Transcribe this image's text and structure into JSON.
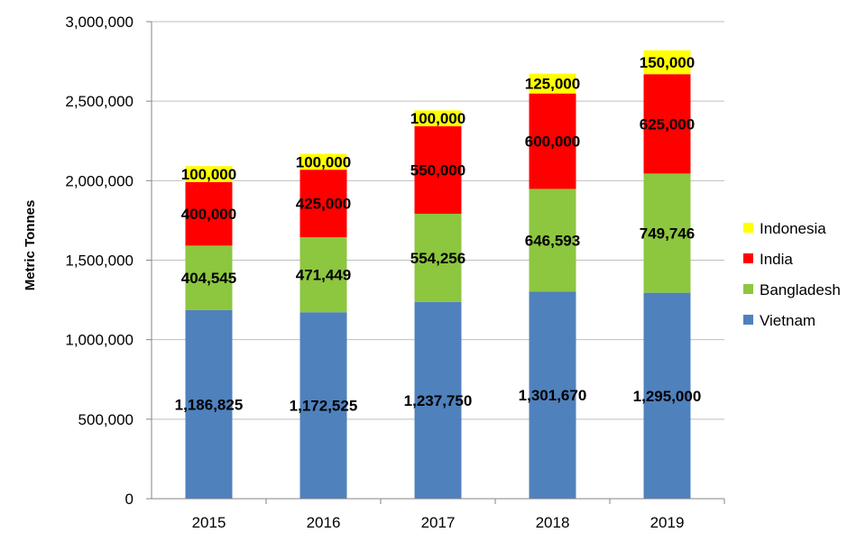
{
  "chart_data": {
    "type": "bar",
    "stacked": true,
    "title": "",
    "xlabel": "",
    "ylabel": "Metric Tonnes",
    "ylim": [
      0,
      3000000
    ],
    "yticks": [
      0,
      500000,
      1000000,
      1500000,
      2000000,
      2500000,
      3000000
    ],
    "ytick_labels": [
      "0",
      "500,000",
      "1,000,000",
      "1,500,000",
      "2,000,000",
      "2,500,000",
      "3,000,000"
    ],
    "grid": true,
    "legend_position": "right",
    "categories": [
      "2015",
      "2016",
      "2017",
      "2018",
      "2019"
    ],
    "series": [
      {
        "name": "Vietnam",
        "color": "#4F81BD",
        "values": [
          1186825,
          1172525,
          1237750,
          1301670,
          1295000
        ],
        "labels": [
          "1,186,825",
          "1,172,525",
          "1,237,750",
          "1,301,670",
          "1,295,000"
        ]
      },
      {
        "name": "Bangladesh",
        "color": "#8DC63F",
        "values": [
          404545,
          471449,
          554256,
          646593,
          749746
        ],
        "labels": [
          "404,545",
          "471,449",
          "554,256",
          "646,593",
          "749,746"
        ]
      },
      {
        "name": "India",
        "color": "#FF0000",
        "values": [
          400000,
          425000,
          550000,
          600000,
          625000
        ],
        "labels": [
          "400,000",
          "425,000",
          "550,000",
          "600,000",
          "625,000"
        ]
      },
      {
        "name": "Indonesia",
        "color": "#FFFF00",
        "values": [
          100000,
          100000,
          100000,
          125000,
          150000
        ],
        "labels": [
          "100,000",
          "100,000",
          "100,000",
          "125,000",
          "150,000"
        ]
      }
    ]
  }
}
